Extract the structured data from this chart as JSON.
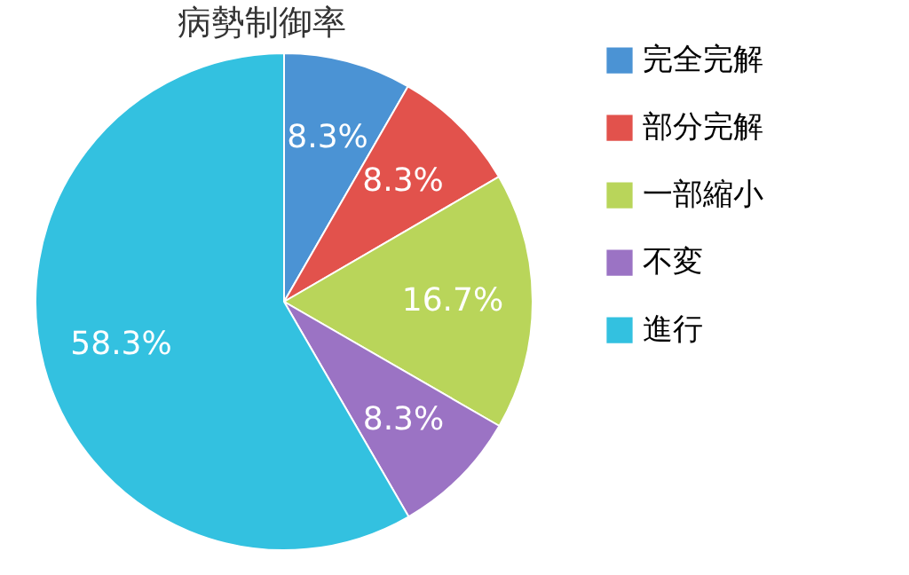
{
  "chart_data": {
    "type": "pie",
    "title": "病勢制御率",
    "categories": [
      "完全完解",
      "部分完解",
      "一部縮小",
      "不変",
      "進行"
    ],
    "values": [
      8.3,
      8.3,
      16.7,
      8.3,
      58.3
    ],
    "value_labels": [
      "8.3%",
      "8.3%",
      "16.7%",
      "8.3%",
      "58.3%"
    ],
    "colors": [
      "#4b93d4",
      "#e2524c",
      "#b9d55a",
      "#9b73c4",
      "#33c1e0"
    ],
    "legend": "right"
  }
}
